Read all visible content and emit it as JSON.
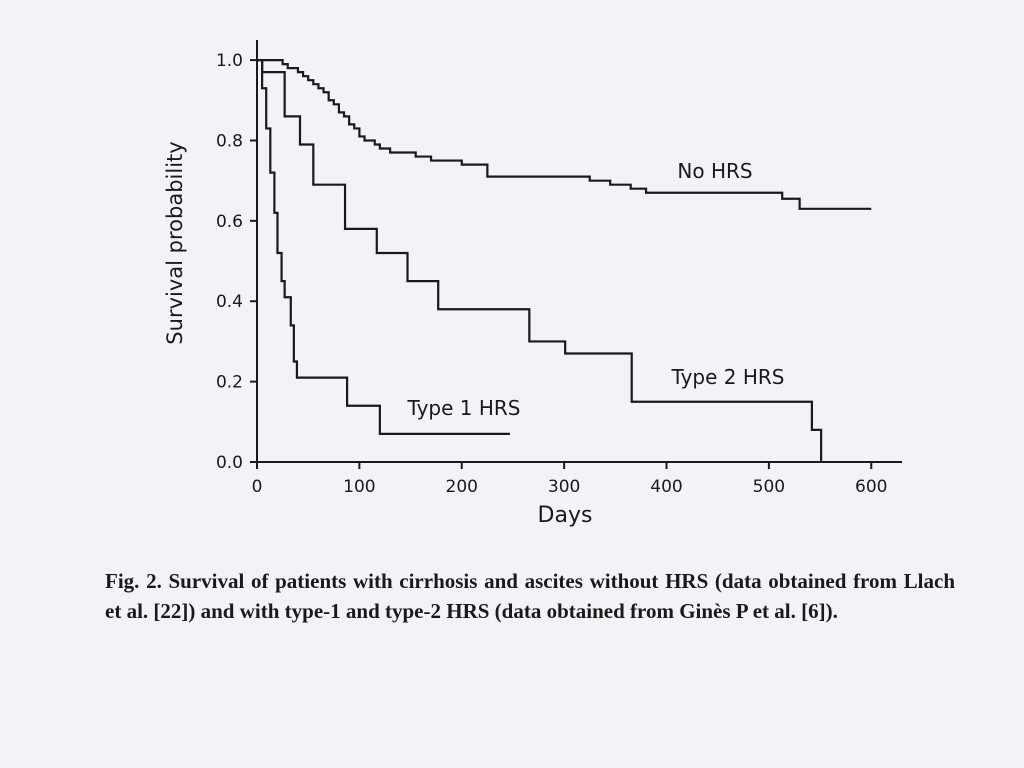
{
  "chart_data": {
    "type": "step",
    "xlabel": "Days",
    "ylabel": "Survival probability",
    "xlim": [
      0,
      630
    ],
    "ylim": [
      0,
      1.05
    ],
    "xticks": [
      0,
      100,
      200,
      300,
      400,
      500,
      600
    ],
    "yticks": [
      {
        "value": 0,
        "label": "0.0"
      },
      0.2,
      0.4,
      0.6,
      0.8,
      {
        "value": 1,
        "label": "1.0"
      }
    ],
    "series": [
      {
        "name": "No HRS",
        "color": "#1a1a1a",
        "x": [
          0,
          25,
          30,
          40,
          45,
          50,
          55,
          60,
          65,
          70,
          75,
          80,
          85,
          90,
          95,
          100,
          105,
          115,
          120,
          130,
          155,
          170,
          200,
          225,
          325,
          345,
          365,
          380,
          513,
          530,
          600
        ],
        "values": [
          1.0,
          0.99,
          0.98,
          0.97,
          0.96,
          0.95,
          0.94,
          0.93,
          0.92,
          0.9,
          0.89,
          0.87,
          0.86,
          0.84,
          0.83,
          0.81,
          0.8,
          0.79,
          0.78,
          0.77,
          0.76,
          0.75,
          0.74,
          0.71,
          0.7,
          0.69,
          0.68,
          0.67,
          0.655,
          0.63,
          0.63
        ]
      },
      {
        "name": "Type 2 HRS",
        "color": "#1a1a1a",
        "x": [
          0,
          5,
          27,
          42,
          55,
          86,
          117,
          147,
          177,
          266,
          301,
          366,
          542,
          551
        ],
        "values": [
          1.0,
          0.97,
          0.86,
          0.79,
          0.69,
          0.58,
          0.52,
          0.45,
          0.38,
          0.3,
          0.27,
          0.15,
          0.08,
          0.0
        ]
      },
      {
        "name": "Type 1 HRS",
        "color": "#1a1a1a",
        "x": [
          0,
          5,
          9,
          13,
          17,
          20,
          24,
          27,
          33,
          36,
          39,
          88,
          120,
          247
        ],
        "values": [
          1.0,
          0.93,
          0.83,
          0.72,
          0.62,
          0.52,
          0.45,
          0.41,
          0.34,
          0.25,
          0.21,
          0.14,
          0.07,
          0.07
        ]
      }
    ],
    "caption": "Fig. 2. Survival of patients with cirrhosis and ascites without HRS (data obtained from Llach et al. [22]) and with type-1 and type-2 HRS (data obtained from Ginès P et al. [6])."
  }
}
